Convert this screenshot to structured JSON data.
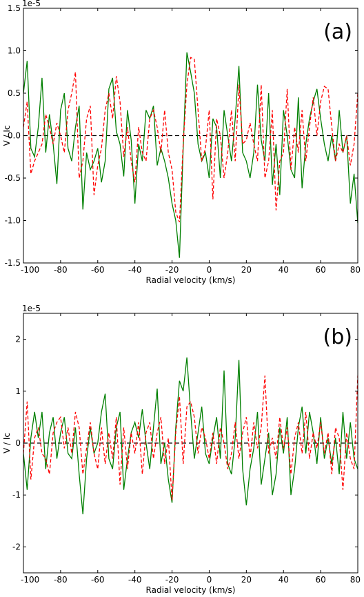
{
  "chart_data": [
    {
      "type": "line",
      "panel_label": "(a)",
      "offset_text": "1e-5",
      "xlabel": "Radial velocity (km/s)",
      "ylabel": "V / Ic",
      "xlim": [
        -100,
        80
      ],
      "ylim": [
        -1.5,
        1.5
      ],
      "grid": false,
      "legend": "none",
      "xticks": [
        -100,
        -80,
        -60,
        -40,
        -20,
        0,
        20,
        40,
        60,
        80
      ],
      "xtick_labels": [
        "-100",
        "-80",
        "-60",
        "-40",
        "-20",
        "0",
        "20",
        "40",
        "60",
        "80"
      ],
      "yticks": [
        -1.5,
        -1.0,
        -0.5,
        0.0,
        0.5,
        1.0,
        1.5
      ],
      "ytick_labels": [
        "-1.5",
        "-1.0",
        "-0.5",
        "0.0",
        "0.5",
        "1.0",
        "1.5"
      ],
      "reference_line": {
        "y": 0,
        "style": "dashed",
        "color": "#000000"
      },
      "x": [
        -100,
        -98,
        -96,
        -94,
        -92,
        -90,
        -88,
        -86,
        -84,
        -82,
        -80,
        -78,
        -76,
        -74,
        -72,
        -70,
        -68,
        -66,
        -64,
        -62,
        -60,
        -58,
        -56,
        -54,
        -52,
        -50,
        -48,
        -46,
        -44,
        -42,
        -40,
        -38,
        -36,
        -34,
        -32,
        -30,
        -28,
        -26,
        -24,
        -22,
        -20,
        -18,
        -16,
        -14,
        -12,
        -10,
        -8,
        -6,
        -4,
        -2,
        0,
        2,
        4,
        6,
        8,
        10,
        12,
        14,
        16,
        18,
        20,
        22,
        24,
        26,
        28,
        30,
        32,
        34,
        36,
        38,
        40,
        42,
        44,
        46,
        48,
        50,
        52,
        54,
        56,
        58,
        60,
        62,
        64,
        66,
        68,
        70,
        72,
        74,
        76,
        78,
        80
      ],
      "series": [
        {
          "color": "#007f00",
          "style": "solid",
          "values": [
            0.5,
            0.88,
            -0.15,
            -0.25,
            0.1,
            0.68,
            -0.2,
            0.25,
            -0.1,
            -0.57,
            0.3,
            0.5,
            -0.15,
            -0.3,
            0.1,
            0.35,
            -0.87,
            -0.2,
            -0.4,
            -0.3,
            -0.15,
            -0.55,
            -0.3,
            0.55,
            0.68,
            0.05,
            -0.1,
            -0.48,
            0.3,
            -0.05,
            -0.8,
            -0.1,
            -0.3,
            0.3,
            0.2,
            0.35,
            -0.35,
            -0.15,
            -0.3,
            -0.5,
            -0.8,
            -1.0,
            -1.44,
            -0.15,
            0.98,
            0.75,
            0.5,
            -0.1,
            -0.3,
            -0.2,
            -0.5,
            0.2,
            0.1,
            -0.5,
            0.3,
            0.0,
            -0.3,
            0.2,
            0.82,
            -0.2,
            -0.3,
            -0.5,
            -0.2,
            0.6,
            -0.05,
            -0.3,
            0.5,
            -0.58,
            -0.1,
            -0.7,
            0.3,
            0.0,
            -0.4,
            -0.5,
            0.45,
            -0.62,
            -0.1,
            0.2,
            0.4,
            0.55,
            0.2,
            -0.1,
            -0.3,
            0.0,
            -0.3,
            0.3,
            -0.2,
            0.0,
            -0.8,
            -0.45,
            -1.03
          ]
        },
        {
          "color": "#ff0000",
          "style": "dashed",
          "values": [
            0.1,
            0.4,
            -0.45,
            -0.3,
            -0.2,
            -0.1,
            0.25,
            0.1,
            -0.1,
            0.15,
            0.0,
            -0.2,
            0.3,
            0.5,
            0.75,
            -0.5,
            -0.3,
            0.2,
            0.35,
            -0.7,
            -0.35,
            -0.15,
            0.3,
            0.5,
            0.2,
            0.7,
            0.4,
            -0.25,
            0.1,
            -0.3,
            -0.55,
            0.1,
            -0.2,
            -0.3,
            0.2,
            0.3,
            0.1,
            -0.2,
            0.3,
            -0.2,
            -0.4,
            -0.9,
            -1.02,
            -0.1,
            0.6,
            0.92,
            0.9,
            0.3,
            -0.3,
            -0.15,
            0.3,
            -0.75,
            0.2,
            0.0,
            -0.5,
            -0.2,
            0.3,
            -0.3,
            0.6,
            -0.1,
            -0.05,
            0.15,
            -0.1,
            -0.3,
            0.6,
            -0.5,
            -0.3,
            0.3,
            -0.88,
            -0.3,
            -0.2,
            0.55,
            -0.4,
            0.1,
            -0.2,
            0.3,
            -0.3,
            0.1,
            0.45,
            0.0,
            0.4,
            0.58,
            0.55,
            0.1,
            -0.3,
            -0.1,
            -0.2,
            0.0,
            -0.35,
            -0.1,
            0.5
          ]
        }
      ]
    },
    {
      "type": "line",
      "panel_label": "(b)",
      "offset_text": "1e-5",
      "xlabel": "Radial velocity (km/s)",
      "ylabel": "V / Ic",
      "xlim": [
        -100,
        80
      ],
      "ylim": [
        -2.5,
        2.5
      ],
      "grid": false,
      "legend": "none",
      "xticks": [
        -100,
        -80,
        -60,
        -40,
        -20,
        0,
        20,
        40,
        60,
        80
      ],
      "xtick_labels": [
        "-100",
        "-80",
        "-60",
        "-40",
        "-20",
        "0",
        "20",
        "40",
        "60",
        "80"
      ],
      "yticks": [
        -2,
        -1,
        0,
        1,
        2
      ],
      "ytick_labels": [
        "-2",
        "-1",
        "0",
        "1",
        "2"
      ],
      "reference_line": {
        "y": 0,
        "style": "dashed",
        "color": "#000000"
      },
      "x": [
        -100,
        -98,
        -96,
        -94,
        -92,
        -90,
        -88,
        -86,
        -84,
        -82,
        -80,
        -78,
        -76,
        -74,
        -72,
        -70,
        -68,
        -66,
        -64,
        -62,
        -60,
        -58,
        -56,
        -54,
        -52,
        -50,
        -48,
        -46,
        -44,
        -42,
        -40,
        -38,
        -36,
        -34,
        -32,
        -30,
        -28,
        -26,
        -24,
        -22,
        -20,
        -18,
        -16,
        -14,
        -12,
        -10,
        -8,
        -6,
        -4,
        -2,
        0,
        2,
        4,
        6,
        8,
        10,
        12,
        14,
        16,
        18,
        20,
        22,
        24,
        26,
        28,
        30,
        32,
        34,
        36,
        38,
        40,
        42,
        44,
        46,
        48,
        50,
        52,
        54,
        56,
        58,
        60,
        62,
        64,
        66,
        68,
        70,
        72,
        74,
        76,
        78,
        80
      ],
      "series": [
        {
          "color": "#007f00",
          "style": "solid",
          "values": [
            -0.2,
            -0.9,
            0.1,
            0.6,
            0.1,
            0.6,
            -0.5,
            0.2,
            0.5,
            -0.3,
            0.2,
            0.5,
            -0.2,
            -0.3,
            0.3,
            -0.6,
            -1.37,
            -0.3,
            0.3,
            -0.2,
            0.0,
            0.6,
            0.95,
            -0.3,
            -0.5,
            0.3,
            0.6,
            -0.9,
            -0.3,
            0.2,
            0.4,
            0.1,
            0.65,
            0.0,
            -0.5,
            0.3,
            1.05,
            -0.4,
            0.0,
            -0.7,
            -1.15,
            0.3,
            1.2,
            1.0,
            1.65,
            0.6,
            -0.3,
            0.2,
            0.7,
            -0.2,
            -0.4,
            0.1,
            0.5,
            -0.3,
            1.4,
            -0.4,
            -0.6,
            0.1,
            1.6,
            -0.5,
            -1.2,
            -0.5,
            -0.1,
            0.6,
            -0.8,
            -0.3,
            0.2,
            -1.0,
            -0.6,
            0.3,
            -0.2,
            0.5,
            -1.0,
            -0.5,
            0.3,
            0.7,
            -0.2,
            0.6,
            0.2,
            -0.4,
            0.5,
            -0.3,
            0.1,
            -0.4,
            0.1,
            -0.6,
            0.6,
            -0.3,
            0.4,
            -0.3,
            -0.5
          ]
        },
        {
          "color": "#ff0000",
          "style": "dashed",
          "values": [
            -0.2,
            0.8,
            -0.7,
            0.1,
            0.3,
            -0.2,
            -0.3,
            -0.6,
            0.2,
            0.4,
            0.5,
            -0.1,
            0.3,
            -0.2,
            0.6,
            0.3,
            -0.6,
            -0.1,
            0.4,
            -0.2,
            -0.5,
            0.3,
            -0.4,
            0.2,
            -0.3,
            0.5,
            -0.8,
            0.3,
            -0.5,
            0.2,
            -0.2,
            0.4,
            -0.6,
            0.2,
            0.4,
            -0.3,
            0.2,
            0.5,
            -0.4,
            0.1,
            -1.1,
            0.2,
            0.9,
            -0.4,
            0.7,
            0.8,
            0.5,
            -0.2,
            0.3,
            0.1,
            -0.3,
            0.2,
            -0.4,
            0.3,
            0.0,
            -0.5,
            -0.2,
            0.4,
            -0.3,
            0.2,
            0.5,
            -0.3,
            0.4,
            -0.1,
            0.3,
            1.3,
            -0.2,
            0.1,
            -0.3,
            0.5,
            -0.1,
            0.3,
            -0.6,
            0.1,
            0.4,
            -0.2,
            0.6,
            -0.3,
            0.2,
            -0.1,
            0.4,
            -0.2,
            0.2,
            -0.6,
            0.3,
            0.1,
            -0.9,
            0.2,
            -0.3,
            -0.5,
            1.3
          ]
        }
      ]
    }
  ]
}
